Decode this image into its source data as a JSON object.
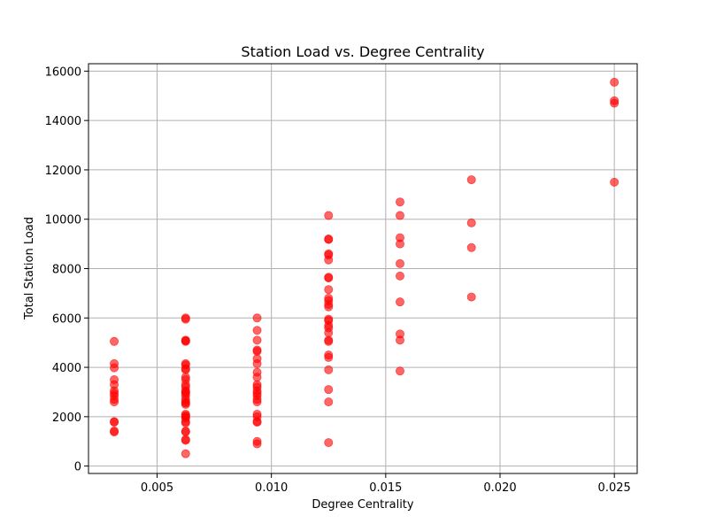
{
  "chart_data": {
    "type": "scatter",
    "title": "Station Load vs. Degree Centrality",
    "xlabel": "Degree Centrality",
    "ylabel": "Total Station Load",
    "xlim": [
      0.002,
      0.026
    ],
    "ylim": [
      -300,
      16300
    ],
    "xticks": [
      0.005,
      0.01,
      0.015,
      0.02,
      0.025
    ],
    "xtick_labels": [
      "0.005",
      "0.010",
      "0.015",
      "0.020",
      "0.025"
    ],
    "yticks": [
      0,
      2000,
      4000,
      6000,
      8000,
      10000,
      12000,
      14000,
      16000
    ],
    "ytick_labels": [
      "0",
      "2000",
      "4000",
      "6000",
      "8000",
      "10000",
      "12000",
      "14000",
      "16000"
    ],
    "grid": true,
    "marker_color": "#ff0000",
    "marker_opacity": 0.6,
    "points": [
      {
        "x": 0.003125,
        "y": 5050
      },
      {
        "x": 0.003125,
        "y": 4150
      },
      {
        "x": 0.003125,
        "y": 3980
      },
      {
        "x": 0.003125,
        "y": 3500
      },
      {
        "x": 0.003125,
        "y": 3300
      },
      {
        "x": 0.003125,
        "y": 3050
      },
      {
        "x": 0.003125,
        "y": 2950
      },
      {
        "x": 0.003125,
        "y": 2850
      },
      {
        "x": 0.003125,
        "y": 2700
      },
      {
        "x": 0.003125,
        "y": 2600
      },
      {
        "x": 0.003125,
        "y": 1800
      },
      {
        "x": 0.003125,
        "y": 1780
      },
      {
        "x": 0.003125,
        "y": 1420
      },
      {
        "x": 0.003125,
        "y": 1380
      },
      {
        "x": 0.00625,
        "y": 6000
      },
      {
        "x": 0.00625,
        "y": 5950
      },
      {
        "x": 0.00625,
        "y": 5100
      },
      {
        "x": 0.00625,
        "y": 5080
      },
      {
        "x": 0.00625,
        "y": 5050
      },
      {
        "x": 0.00625,
        "y": 4150
      },
      {
        "x": 0.00625,
        "y": 4100
      },
      {
        "x": 0.00625,
        "y": 3950
      },
      {
        "x": 0.00625,
        "y": 3900
      },
      {
        "x": 0.00625,
        "y": 3600
      },
      {
        "x": 0.00625,
        "y": 3500
      },
      {
        "x": 0.00625,
        "y": 3300
      },
      {
        "x": 0.00625,
        "y": 3200
      },
      {
        "x": 0.00625,
        "y": 3050
      },
      {
        "x": 0.00625,
        "y": 3000
      },
      {
        "x": 0.00625,
        "y": 2950
      },
      {
        "x": 0.00625,
        "y": 2850
      },
      {
        "x": 0.00625,
        "y": 2700
      },
      {
        "x": 0.00625,
        "y": 2600
      },
      {
        "x": 0.00625,
        "y": 2550
      },
      {
        "x": 0.00625,
        "y": 2500
      },
      {
        "x": 0.00625,
        "y": 2100
      },
      {
        "x": 0.00625,
        "y": 2050
      },
      {
        "x": 0.00625,
        "y": 2000
      },
      {
        "x": 0.00625,
        "y": 1950
      },
      {
        "x": 0.00625,
        "y": 1800
      },
      {
        "x": 0.00625,
        "y": 1750
      },
      {
        "x": 0.00625,
        "y": 1420
      },
      {
        "x": 0.00625,
        "y": 1380
      },
      {
        "x": 0.00625,
        "y": 1080
      },
      {
        "x": 0.00625,
        "y": 1040
      },
      {
        "x": 0.00625,
        "y": 500
      },
      {
        "x": 0.009375,
        "y": 6000
      },
      {
        "x": 0.009375,
        "y": 5500
      },
      {
        "x": 0.009375,
        "y": 5100
      },
      {
        "x": 0.009375,
        "y": 4700
      },
      {
        "x": 0.009375,
        "y": 4650
      },
      {
        "x": 0.009375,
        "y": 4350
      },
      {
        "x": 0.009375,
        "y": 4150
      },
      {
        "x": 0.009375,
        "y": 3800
      },
      {
        "x": 0.009375,
        "y": 3600
      },
      {
        "x": 0.009375,
        "y": 3300
      },
      {
        "x": 0.009375,
        "y": 3200
      },
      {
        "x": 0.009375,
        "y": 3050
      },
      {
        "x": 0.009375,
        "y": 2950
      },
      {
        "x": 0.009375,
        "y": 2850
      },
      {
        "x": 0.009375,
        "y": 2700
      },
      {
        "x": 0.009375,
        "y": 2600
      },
      {
        "x": 0.009375,
        "y": 2100
      },
      {
        "x": 0.009375,
        "y": 2000
      },
      {
        "x": 0.009375,
        "y": 1800
      },
      {
        "x": 0.009375,
        "y": 1780
      },
      {
        "x": 0.009375,
        "y": 1000
      },
      {
        "x": 0.009375,
        "y": 900
      },
      {
        "x": 0.0125,
        "y": 10150
      },
      {
        "x": 0.0125,
        "y": 9200
      },
      {
        "x": 0.0125,
        "y": 9180
      },
      {
        "x": 0.0125,
        "y": 8600
      },
      {
        "x": 0.0125,
        "y": 8550
      },
      {
        "x": 0.0125,
        "y": 8350
      },
      {
        "x": 0.0125,
        "y": 7650
      },
      {
        "x": 0.0125,
        "y": 7620
      },
      {
        "x": 0.0125,
        "y": 7150
      },
      {
        "x": 0.0125,
        "y": 6800
      },
      {
        "x": 0.0125,
        "y": 6700
      },
      {
        "x": 0.0125,
        "y": 6550
      },
      {
        "x": 0.0125,
        "y": 6450
      },
      {
        "x": 0.0125,
        "y": 5950
      },
      {
        "x": 0.0125,
        "y": 5900
      },
      {
        "x": 0.0125,
        "y": 5700
      },
      {
        "x": 0.0125,
        "y": 5600
      },
      {
        "x": 0.0125,
        "y": 5400
      },
      {
        "x": 0.0125,
        "y": 5100
      },
      {
        "x": 0.0125,
        "y": 5050
      },
      {
        "x": 0.0125,
        "y": 4500
      },
      {
        "x": 0.0125,
        "y": 4400
      },
      {
        "x": 0.0125,
        "y": 3900
      },
      {
        "x": 0.0125,
        "y": 3100
      },
      {
        "x": 0.0125,
        "y": 2600
      },
      {
        "x": 0.0125,
        "y": 950
      },
      {
        "x": 0.015625,
        "y": 10700
      },
      {
        "x": 0.015625,
        "y": 10150
      },
      {
        "x": 0.015625,
        "y": 9250
      },
      {
        "x": 0.015625,
        "y": 9000
      },
      {
        "x": 0.015625,
        "y": 8200
      },
      {
        "x": 0.015625,
        "y": 7700
      },
      {
        "x": 0.015625,
        "y": 6650
      },
      {
        "x": 0.015625,
        "y": 5350
      },
      {
        "x": 0.015625,
        "y": 5100
      },
      {
        "x": 0.015625,
        "y": 3850
      },
      {
        "x": 0.01875,
        "y": 11600
      },
      {
        "x": 0.01875,
        "y": 9850
      },
      {
        "x": 0.01875,
        "y": 8850
      },
      {
        "x": 0.01875,
        "y": 6850
      },
      {
        "x": 0.025,
        "y": 15550
      },
      {
        "x": 0.025,
        "y": 14800
      },
      {
        "x": 0.025,
        "y": 14700
      },
      {
        "x": 0.025,
        "y": 11500
      }
    ]
  }
}
